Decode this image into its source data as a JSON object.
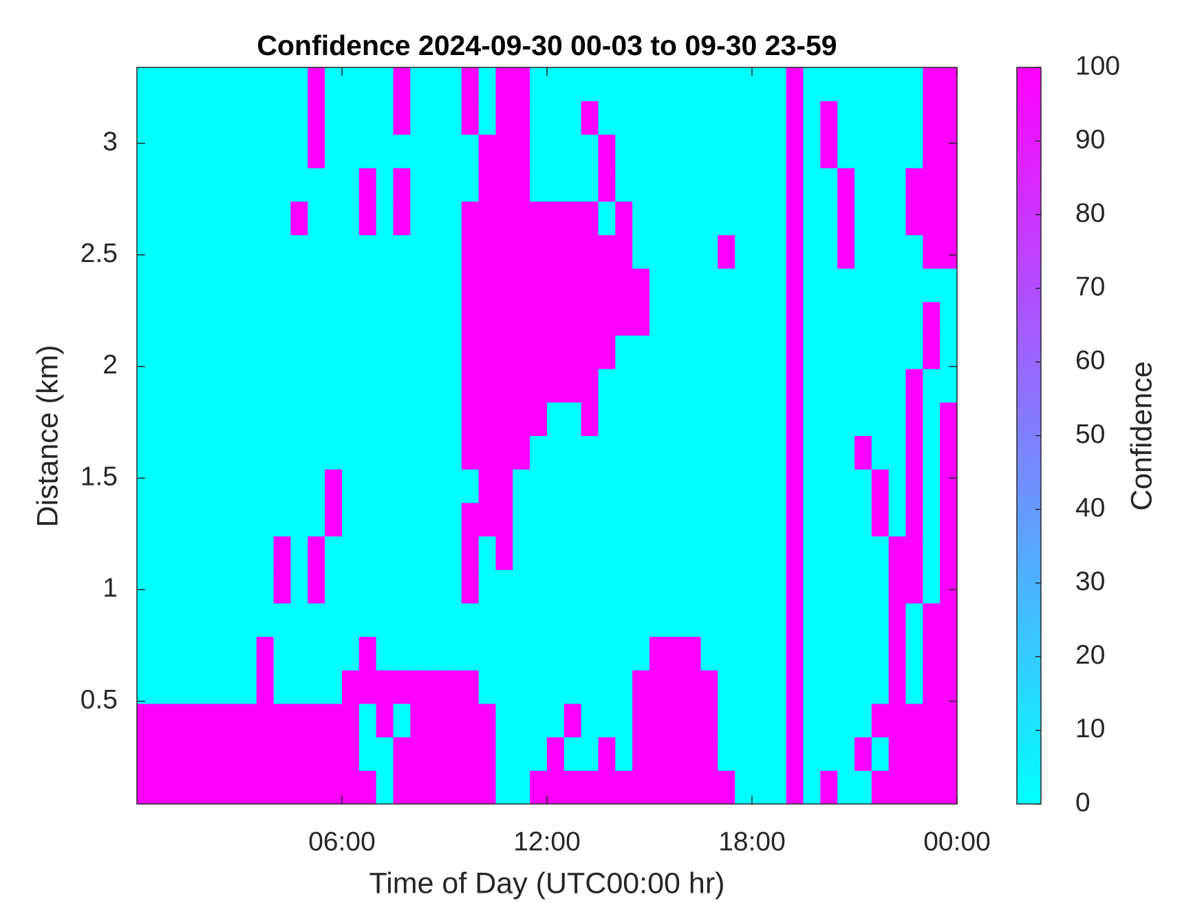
{
  "chart_data": {
    "type": "heatmap",
    "title": "Confidence 2024-09-30 00-03 to 09-30 23-59",
    "x_label": "Time of Day (UTC00:00 hr)",
    "y_label": "Distance (km)",
    "xlim": [
      0,
      24
    ],
    "ylim": [
      0.04,
      3.34
    ],
    "xticks": [
      {
        "value": 6,
        "label": "06:00"
      },
      {
        "value": 12,
        "label": "12:00"
      },
      {
        "value": 18,
        "label": "18:00"
      },
      {
        "value": 24,
        "label": "00:00"
      }
    ],
    "yticks": [
      0.5,
      1,
      1.5,
      2,
      2.5,
      3
    ],
    "x": [
      0.25,
      0.75,
      1.25,
      1.75,
      2.25,
      2.75,
      3.25,
      3.75,
      4.25,
      4.75,
      5.25,
      5.75,
      6.25,
      6.75,
      7.25,
      7.75,
      8.25,
      8.75,
      9.25,
      9.75,
      10.25,
      10.75,
      11.25,
      11.75,
      12.25,
      12.75,
      13.25,
      13.75,
      14.25,
      14.75,
      15.25,
      15.75,
      16.25,
      16.75,
      17.25,
      17.75,
      18.25,
      18.75,
      19.25,
      19.75,
      20.25,
      20.75,
      21.25,
      21.75,
      22.25,
      22.75,
      23.25,
      23.75
    ],
    "y": [
      0.115,
      0.265,
      0.415,
      0.565,
      0.715,
      0.865,
      1.015,
      1.165,
      1.315,
      1.465,
      1.615,
      1.765,
      1.915,
      2.065,
      2.215,
      2.365,
      2.515,
      2.665,
      2.815,
      2.965,
      3.115,
      3.265
    ],
    "values": [
      [
        100,
        100,
        100,
        100,
        100,
        100,
        100,
        100,
        100,
        100,
        100,
        100,
        100,
        100,
        0,
        100,
        100,
        100,
        100,
        100,
        100,
        0,
        0,
        100,
        100,
        100,
        100,
        100,
        100,
        100,
        100,
        100,
        100,
        100,
        100,
        0,
        0,
        0,
        100,
        0,
        100,
        0,
        0,
        100,
        100,
        100,
        100,
        100
      ],
      [
        100,
        100,
        100,
        100,
        100,
        100,
        100,
        100,
        100,
        100,
        100,
        100,
        100,
        0,
        0,
        100,
        100,
        100,
        100,
        100,
        100,
        0,
        0,
        0,
        100,
        0,
        0,
        100,
        0,
        100,
        100,
        100,
        100,
        100,
        0,
        0,
        0,
        0,
        100,
        0,
        0,
        0,
        100,
        0,
        100,
        100,
        100,
        100
      ],
      [
        100,
        100,
        100,
        100,
        100,
        100,
        100,
        100,
        100,
        100,
        100,
        100,
        100,
        0,
        100,
        0,
        100,
        100,
        100,
        100,
        100,
        0,
        0,
        0,
        0,
        100,
        0,
        0,
        0,
        100,
        100,
        100,
        100,
        100,
        0,
        0,
        0,
        0,
        100,
        0,
        0,
        0,
        0,
        100,
        100,
        100,
        100,
        100
      ],
      [
        0,
        0,
        0,
        0,
        0,
        0,
        0,
        100,
        0,
        0,
        0,
        0,
        100,
        100,
        100,
        100,
        100,
        100,
        100,
        100,
        0,
        0,
        0,
        0,
        0,
        0,
        0,
        0,
        0,
        100,
        100,
        100,
        100,
        100,
        0,
        0,
        0,
        0,
        100,
        0,
        0,
        0,
        0,
        0,
        100,
        0,
        100,
        100
      ],
      [
        0,
        0,
        0,
        0,
        0,
        0,
        0,
        100,
        0,
        0,
        0,
        0,
        0,
        100,
        0,
        0,
        0,
        0,
        0,
        0,
        0,
        0,
        0,
        0,
        0,
        0,
        0,
        0,
        0,
        0,
        100,
        100,
        100,
        0,
        0,
        0,
        0,
        0,
        100,
        0,
        0,
        0,
        0,
        0,
        100,
        0,
        100,
        100
      ],
      [
        0,
        0,
        0,
        0,
        0,
        0,
        0,
        0,
        0,
        0,
        0,
        0,
        0,
        0,
        0,
        0,
        0,
        0,
        0,
        0,
        0,
        0,
        0,
        0,
        0,
        0,
        0,
        0,
        0,
        0,
        0,
        0,
        0,
        0,
        0,
        0,
        0,
        0,
        100,
        0,
        0,
        0,
        0,
        0,
        100,
        0,
        100,
        100
      ],
      [
        0,
        0,
        0,
        0,
        0,
        0,
        0,
        0,
        100,
        0,
        100,
        0,
        0,
        0,
        0,
        0,
        0,
        0,
        0,
        100,
        0,
        0,
        0,
        0,
        0,
        0,
        0,
        0,
        0,
        0,
        0,
        0,
        0,
        0,
        0,
        0,
        0,
        0,
        100,
        0,
        0,
        0,
        0,
        0,
        100,
        100,
        0,
        100
      ],
      [
        0,
        0,
        0,
        0,
        0,
        0,
        0,
        0,
        100,
        0,
        100,
        0,
        0,
        0,
        0,
        0,
        0,
        0,
        0,
        100,
        0,
        100,
        0,
        0,
        0,
        0,
        0,
        0,
        0,
        0,
        0,
        0,
        0,
        0,
        0,
        0,
        0,
        0,
        100,
        0,
        0,
        0,
        0,
        0,
        100,
        100,
        0,
        100
      ],
      [
        0,
        0,
        0,
        0,
        0,
        0,
        0,
        0,
        0,
        0,
        0,
        100,
        0,
        0,
        0,
        0,
        0,
        0,
        0,
        100,
        100,
        100,
        0,
        0,
        0,
        0,
        0,
        0,
        0,
        0,
        0,
        0,
        0,
        0,
        0,
        0,
        0,
        0,
        100,
        0,
        0,
        0,
        0,
        100,
        0,
        100,
        0,
        100
      ],
      [
        0,
        0,
        0,
        0,
        0,
        0,
        0,
        0,
        0,
        0,
        0,
        100,
        0,
        0,
        0,
        0,
        0,
        0,
        0,
        0,
        100,
        100,
        0,
        0,
        0,
        0,
        0,
        0,
        0,
        0,
        0,
        0,
        0,
        0,
        0,
        0,
        0,
        0,
        100,
        0,
        0,
        0,
        0,
        100,
        0,
        100,
        0,
        100
      ],
      [
        0,
        0,
        0,
        0,
        0,
        0,
        0,
        0,
        0,
        0,
        0,
        0,
        0,
        0,
        0,
        0,
        0,
        0,
        0,
        100,
        100,
        100,
        100,
        0,
        0,
        0,
        0,
        0,
        0,
        0,
        0,
        0,
        0,
        0,
        0,
        0,
        0,
        0,
        100,
        0,
        0,
        0,
        100,
        0,
        0,
        100,
        0,
        100
      ],
      [
        0,
        0,
        0,
        0,
        0,
        0,
        0,
        0,
        0,
        0,
        0,
        0,
        0,
        0,
        0,
        0,
        0,
        0,
        0,
        100,
        100,
        100,
        100,
        100,
        0,
        0,
        100,
        0,
        0,
        0,
        0,
        0,
        0,
        0,
        0,
        0,
        0,
        0,
        100,
        0,
        0,
        0,
        0,
        0,
        0,
        100,
        0,
        100
      ],
      [
        0,
        0,
        0,
        0,
        0,
        0,
        0,
        0,
        0,
        0,
        0,
        0,
        0,
        0,
        0,
        0,
        0,
        0,
        0,
        100,
        100,
        100,
        100,
        100,
        100,
        100,
        100,
        0,
        0,
        0,
        0,
        0,
        0,
        0,
        0,
        0,
        0,
        0,
        100,
        0,
        0,
        0,
        0,
        0,
        0,
        100,
        0,
        0
      ],
      [
        0,
        0,
        0,
        0,
        0,
        0,
        0,
        0,
        0,
        0,
        0,
        0,
        0,
        0,
        0,
        0,
        0,
        0,
        0,
        100,
        100,
        100,
        100,
        100,
        100,
        100,
        100,
        100,
        0,
        0,
        0,
        0,
        0,
        0,
        0,
        0,
        0,
        0,
        100,
        0,
        0,
        0,
        0,
        0,
        0,
        0,
        100,
        0
      ],
      [
        0,
        0,
        0,
        0,
        0,
        0,
        0,
        0,
        0,
        0,
        0,
        0,
        0,
        0,
        0,
        0,
        0,
        0,
        0,
        100,
        100,
        100,
        100,
        100,
        100,
        100,
        100,
        100,
        100,
        100,
        0,
        0,
        0,
        0,
        0,
        0,
        0,
        0,
        100,
        0,
        0,
        0,
        0,
        0,
        0,
        0,
        100,
        0
      ],
      [
        0,
        0,
        0,
        0,
        0,
        0,
        0,
        0,
        0,
        0,
        0,
        0,
        0,
        0,
        0,
        0,
        0,
        0,
        0,
        100,
        100,
        100,
        100,
        100,
        100,
        100,
        100,
        100,
        100,
        100,
        0,
        0,
        0,
        0,
        0,
        0,
        0,
        0,
        100,
        0,
        0,
        0,
        0,
        0,
        0,
        0,
        0,
        0
      ],
      [
        0,
        0,
        0,
        0,
        0,
        0,
        0,
        0,
        0,
        0,
        0,
        0,
        0,
        0,
        0,
        0,
        0,
        0,
        0,
        100,
        100,
        100,
        100,
        100,
        100,
        100,
        100,
        100,
        100,
        0,
        0,
        0,
        0,
        0,
        100,
        0,
        0,
        0,
        100,
        0,
        0,
        100,
        0,
        0,
        0,
        0,
        100,
        100
      ],
      [
        0,
        0,
        0,
        0,
        0,
        0,
        0,
        0,
        0,
        100,
        0,
        0,
        0,
        100,
        0,
        100,
        0,
        0,
        0,
        100,
        100,
        100,
        100,
        100,
        100,
        100,
        100,
        0,
        100,
        0,
        0,
        0,
        0,
        0,
        0,
        0,
        0,
        0,
        100,
        0,
        0,
        100,
        0,
        0,
        0,
        100,
        100,
        100
      ],
      [
        0,
        0,
        0,
        0,
        0,
        0,
        0,
        0,
        0,
        0,
        0,
        0,
        0,
        100,
        0,
        100,
        0,
        0,
        0,
        0,
        100,
        100,
        100,
        0,
        0,
        0,
        0,
        100,
        0,
        0,
        0,
        0,
        0,
        0,
        0,
        0,
        0,
        0,
        100,
        0,
        0,
        100,
        0,
        0,
        0,
        100,
        100,
        100
      ],
      [
        0,
        0,
        0,
        0,
        0,
        0,
        0,
        0,
        0,
        0,
        100,
        0,
        0,
        0,
        0,
        0,
        0,
        0,
        0,
        0,
        100,
        100,
        100,
        0,
        0,
        0,
        0,
        100,
        0,
        0,
        0,
        0,
        0,
        0,
        0,
        0,
        0,
        0,
        100,
        0,
        100,
        0,
        0,
        0,
        0,
        0,
        100,
        100
      ],
      [
        0,
        0,
        0,
        0,
        0,
        0,
        0,
        0,
        0,
        0,
        100,
        0,
        0,
        0,
        0,
        100,
        0,
        0,
        0,
        100,
        0,
        100,
        100,
        0,
        0,
        0,
        100,
        0,
        0,
        0,
        0,
        0,
        0,
        0,
        0,
        0,
        0,
        0,
        100,
        0,
        100,
        0,
        0,
        0,
        0,
        0,
        100,
        100
      ],
      [
        0,
        0,
        0,
        0,
        0,
        0,
        0,
        0,
        0,
        0,
        100,
        0,
        0,
        0,
        0,
        100,
        0,
        0,
        0,
        100,
        0,
        100,
        100,
        0,
        0,
        0,
        0,
        0,
        0,
        0,
        0,
        0,
        0,
        0,
        0,
        0,
        0,
        0,
        100,
        0,
        0,
        0,
        0,
        0,
        0,
        0,
        100,
        100
      ]
    ],
    "colorbar": {
      "label": "Confidence",
      "lim": [
        0,
        100
      ],
      "ticks": [
        0,
        10,
        20,
        30,
        40,
        50,
        60,
        70,
        80,
        90,
        100
      ],
      "colors": [
        "#00ffff",
        "#ff00ff"
      ]
    }
  }
}
